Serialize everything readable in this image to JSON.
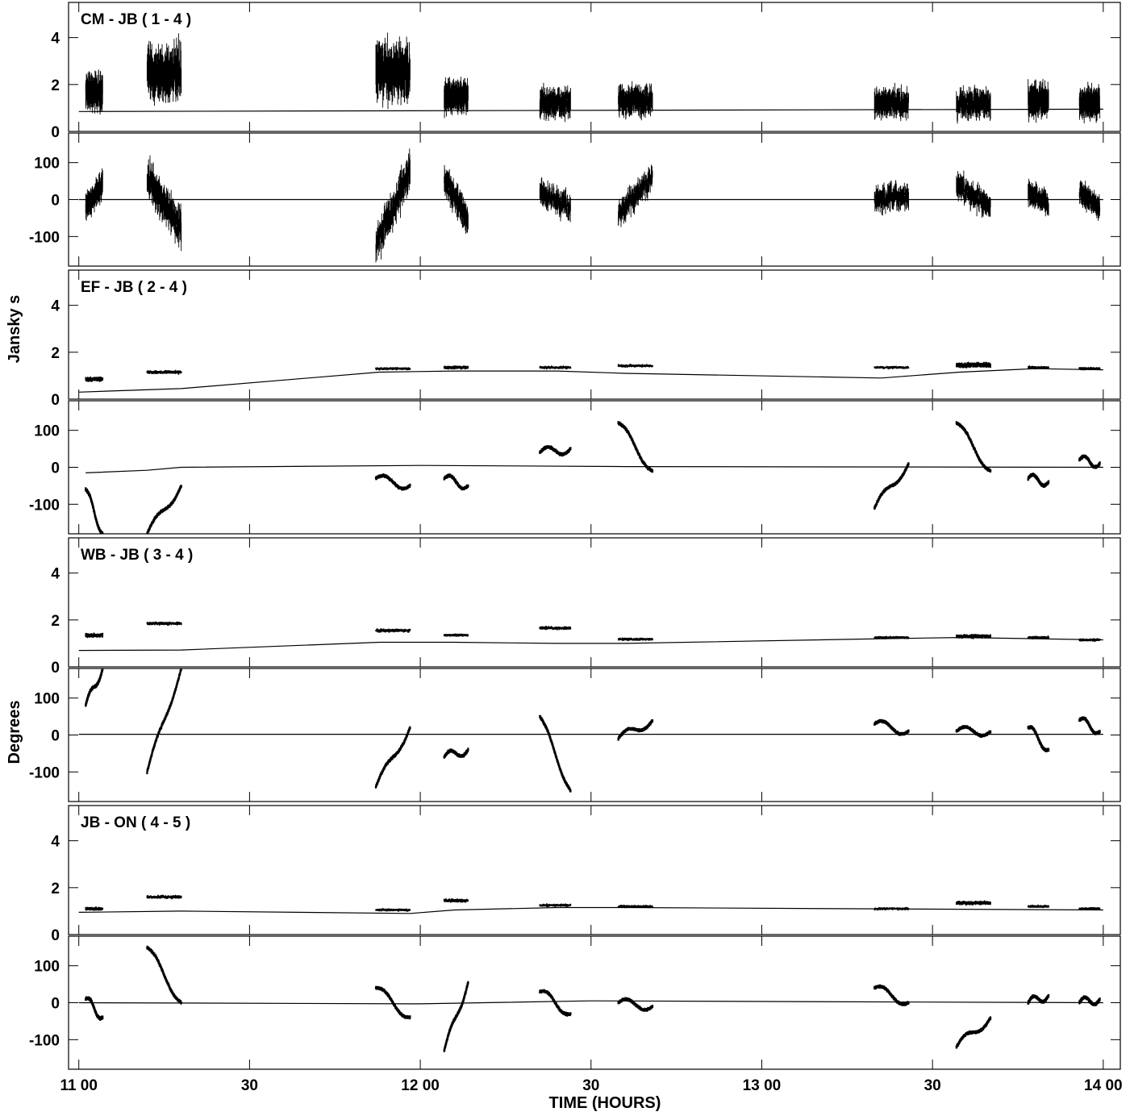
{
  "chart_data": {
    "type": "line",
    "xlabel": "TIME (HOURS)",
    "ylabel_amplitude": "Jansky s",
    "ylabel_phase": "Degrees",
    "x_range_hours": [
      10.97,
      14.05
    ],
    "x_ticks": [
      {
        "value": 11.0,
        "label": "11 00"
      },
      {
        "value": 11.5,
        "label": "30"
      },
      {
        "value": 12.0,
        "label": "12 00"
      },
      {
        "value": 12.5,
        "label": "30"
      },
      {
        "value": 13.0,
        "label": "13 00"
      },
      {
        "value": 13.5,
        "label": "30"
      },
      {
        "value": 14.0,
        "label": "14 00"
      }
    ],
    "amp_ylim": [
      0,
      5.5
    ],
    "amp_ticks": [
      0,
      2,
      4
    ],
    "phase_ylim": [
      -180,
      180
    ],
    "phase_ticks": [
      -100,
      0,
      100
    ],
    "scans": [
      [
        11.02,
        11.07
      ],
      [
        11.2,
        11.3
      ],
      [
        11.87,
        11.97
      ],
      [
        12.07,
        12.14
      ],
      [
        12.35,
        12.44
      ],
      [
        12.58,
        12.68
      ],
      [
        13.33,
        13.43
      ],
      [
        13.57,
        13.67
      ],
      [
        13.78,
        13.84
      ],
      [
        13.93,
        13.99
      ]
    ],
    "panels": [
      {
        "baseline": "CM - JB ( 1 - 4 )",
        "amplitude": {
          "scan_means": [
            1.7,
            2.5,
            2.6,
            1.5,
            1.2,
            1.3,
            1.2,
            1.2,
            1.3,
            1.2
          ],
          "scan_spread": [
            1.3,
            2.0,
            2.0,
            1.2,
            1.1,
            1.1,
            1.1,
            1.1,
            1.2,
            1.1
          ],
          "model": {
            "x": [
              11.0,
              14.0
            ],
            "y": [
              0.85,
              0.95
            ]
          }
        },
        "phase": {
          "scan_trends": [
            [
              -20,
              40
            ],
            [
              60,
              -80
            ],
            [
              -120,
              80
            ],
            [
              60,
              -60
            ],
            [
              20,
              -20
            ],
            [
              -40,
              60
            ],
            [
              0,
              10
            ],
            [
              40,
              -20
            ],
            [
              20,
              -10
            ],
            [
              20,
              -20
            ]
          ],
          "scan_spread": [
            70,
            110,
            100,
            80,
            70,
            70,
            70,
            70,
            60,
            60
          ],
          "model": {
            "x": [
              11.0,
              14.0
            ],
            "y": [
              0,
              0
            ]
          }
        }
      },
      {
        "baseline": "EF - JB ( 2 - 4 )",
        "amplitude": {
          "scan_means": [
            0.85,
            1.15,
            1.3,
            1.35,
            1.35,
            1.42,
            1.35,
            1.45,
            1.35,
            1.3
          ],
          "scan_spread": [
            0.15,
            0.12,
            0.1,
            0.12,
            0.1,
            0.1,
            0.1,
            0.2,
            0.1,
            0.1
          ],
          "model": {
            "x": [
              11.0,
              11.3,
              11.88,
              12.1,
              12.4,
              12.6,
              13.35,
              13.58,
              13.8,
              14.0
            ],
            "y": [
              0.3,
              0.45,
              1.15,
              1.2,
              1.2,
              1.1,
              0.9,
              1.15,
              1.3,
              1.25
            ]
          }
        },
        "phase": {
          "scan_trends": [
            [
              -60,
              -180
            ],
            [
              -180,
              -50
            ],
            [
              -30,
              -50
            ],
            [
              -30,
              -50
            ],
            [
              40,
              50
            ],
            [
              120,
              -10
            ],
            [
              -110,
              10
            ],
            [
              120,
              -10
            ],
            [
              -30,
              -40
            ],
            [
              20,
              10
            ]
          ],
          "scan_spread": [
            8,
            8,
            8,
            8,
            8,
            8,
            8,
            8,
            8,
            8
          ],
          "model": {
            "x": [
              11.02,
              11.2,
              11.3,
              12.0,
              12.6,
              14.0
            ],
            "y": [
              -15,
              -8,
              0,
              5,
              2,
              0
            ]
          }
        }
      },
      {
        "baseline": "WB - JB ( 3 - 4 )",
        "amplitude": {
          "scan_means": [
            1.35,
            1.85,
            1.55,
            1.35,
            1.65,
            1.18,
            1.25,
            1.3,
            1.25,
            1.15
          ],
          "scan_spread": [
            0.15,
            0.12,
            0.12,
            0.1,
            0.12,
            0.1,
            0.1,
            0.15,
            0.1,
            0.1
          ],
          "model": {
            "x": [
              11.0,
              11.3,
              11.88,
              12.1,
              12.4,
              12.6,
              13.35,
              13.58,
              13.8,
              14.0
            ],
            "y": [
              0.7,
              0.72,
              1.05,
              1.05,
              1.0,
              1.0,
              1.2,
              1.25,
              1.2,
              1.15
            ]
          }
        },
        "phase": {
          "scan_trends": [
            [
              80,
              180
            ],
            [
              -100,
              180
            ],
            [
              -140,
              20
            ],
            [
              -60,
              -40
            ],
            [
              50,
              -150
            ],
            [
              -10,
              40
            ],
            [
              30,
              10
            ],
            [
              10,
              10
            ],
            [
              20,
              -40
            ],
            [
              40,
              10
            ]
          ],
          "scan_spread": [
            8,
            8,
            8,
            8,
            8,
            8,
            8,
            8,
            8,
            8
          ],
          "model": {
            "x": [
              11.0,
              14.0
            ],
            "y": [
              2,
              2
            ]
          }
        }
      },
      {
        "baseline": "JB - ON ( 4 - 5 )",
        "amplitude": {
          "scan_means": [
            1.1,
            1.6,
            1.05,
            1.45,
            1.25,
            1.2,
            1.1,
            1.35,
            1.2,
            1.1
          ],
          "scan_spread": [
            0.12,
            0.12,
            0.1,
            0.12,
            0.1,
            0.1,
            0.1,
            0.15,
            0.1,
            0.1
          ],
          "model": {
            "x": [
              11.0,
              11.3,
              11.97,
              12.1,
              12.4,
              12.6,
              14.0
            ],
            "y": [
              0.95,
              1.0,
              0.9,
              1.05,
              1.15,
              1.15,
              1.05
            ]
          }
        },
        "phase": {
          "scan_trends": [
            [
              10,
              -40
            ],
            [
              150,
              0
            ],
            [
              40,
              -40
            ],
            [
              -130,
              55
            ],
            [
              30,
              -30
            ],
            [
              0,
              -10
            ],
            [
              40,
              0
            ],
            [
              -120,
              -40
            ],
            [
              0,
              20
            ],
            [
              0,
              10
            ]
          ],
          "scan_spread": [
            8,
            8,
            8,
            8,
            8,
            8,
            8,
            8,
            8,
            8
          ],
          "model": {
            "x": [
              11.0,
              12.0,
              12.5,
              14.0
            ],
            "y": [
              0,
              -3,
              5,
              0
            ]
          }
        }
      }
    ]
  }
}
